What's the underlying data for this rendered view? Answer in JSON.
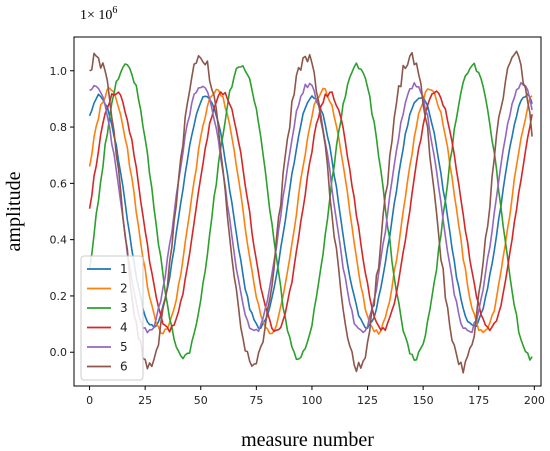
{
  "chart_data": {
    "type": "line",
    "scale_label": "1× 10",
    "scale_exponent": "6",
    "xlabel": "measure number",
    "ylabel": "amplitude",
    "xlim": [
      -7,
      203
    ],
    "ylim": [
      -0.12,
      1.12
    ],
    "xticks": [
      0,
      25,
      50,
      75,
      100,
      125,
      150,
      175,
      200
    ],
    "yticks": [
      0.0,
      0.2,
      0.4,
      0.6,
      0.8,
      1.0
    ],
    "ytick_labels": [
      "0.0",
      "0.2",
      "0.4",
      "0.6",
      "0.8",
      "1.0"
    ],
    "grid": false,
    "legend_position": "lower-left",
    "n_points": 200,
    "series": [
      {
        "name": "1",
        "color": "#1f77b4",
        "amplitude": 0.41,
        "offset": 0.5,
        "period": 48,
        "phase_at_0": 0.84,
        "noise": 0.008
      },
      {
        "name": "2",
        "color": "#ff7f0e",
        "amplitude": 0.43,
        "offset": 0.5,
        "period": 48,
        "phase_at_0": 0.66,
        "noise": 0.01
      },
      {
        "name": "3",
        "color": "#2ca02c",
        "amplitude": 0.52,
        "offset": 0.5,
        "period": 52,
        "phase_at_0": 0.3,
        "noise": 0.012
      },
      {
        "name": "4",
        "color": "#d62728",
        "amplitude": 0.42,
        "offset": 0.5,
        "period": 48,
        "phase_at_0": 0.51,
        "noise": 0.01
      },
      {
        "name": "5",
        "color": "#9467bd",
        "amplitude": 0.44,
        "offset": 0.51,
        "period": 48,
        "phase_at_0": 0.93,
        "noise": 0.01
      },
      {
        "name": "6",
        "color": "#8c564b",
        "amplitude": 0.55,
        "offset": 0.5,
        "period": 47,
        "phase_at_0": 1.0,
        "noise": 0.025
      }
    ]
  }
}
